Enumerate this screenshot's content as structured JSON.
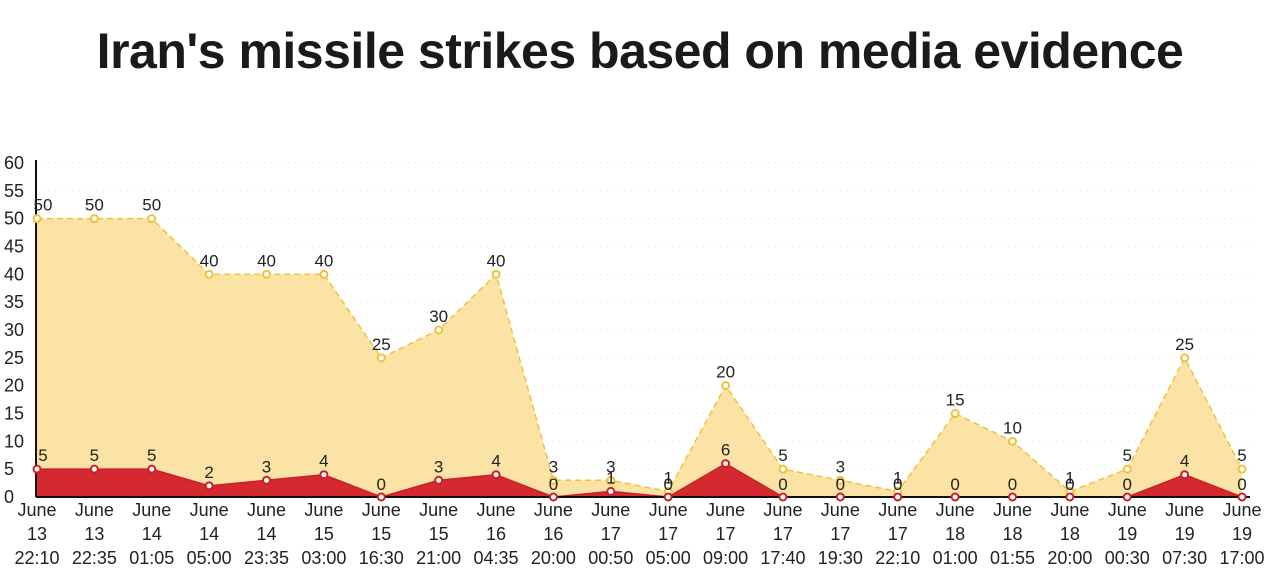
{
  "chart_data": {
    "type": "area",
    "title": "Iran's missile strikes based on media evidence",
    "xlabel": "",
    "ylabel": "",
    "ylim": [
      0,
      60
    ],
    "yticks": [
      0,
      5,
      10,
      15,
      20,
      25,
      30,
      35,
      40,
      45,
      50,
      55,
      60
    ],
    "grid": true,
    "legend": "none",
    "categories": [
      [
        "June",
        "13",
        "22:10"
      ],
      [
        "June",
        "13",
        "22:35"
      ],
      [
        "June",
        "14",
        "01:05"
      ],
      [
        "June",
        "14",
        "05:00"
      ],
      [
        "June",
        "14",
        "23:35"
      ],
      [
        "June",
        "15",
        "03:00"
      ],
      [
        "June",
        "15",
        "16:30"
      ],
      [
        "June",
        "15",
        "21:00"
      ],
      [
        "June",
        "16",
        "04:35"
      ],
      [
        "June",
        "16",
        "20:00"
      ],
      [
        "June",
        "17",
        "00:50"
      ],
      [
        "June",
        "17",
        "05:00"
      ],
      [
        "June",
        "17",
        "09:00"
      ],
      [
        "June",
        "17",
        "17:40"
      ],
      [
        "June",
        "17",
        "19:30"
      ],
      [
        "June",
        "17",
        "22:10"
      ],
      [
        "June",
        "18",
        "01:00"
      ],
      [
        "June",
        "18",
        "01:55"
      ],
      [
        "June",
        "18",
        "20:00"
      ],
      [
        "June",
        "19",
        "00:30"
      ],
      [
        "June",
        "19",
        "07:30"
      ],
      [
        "June",
        "19",
        "17:00"
      ]
    ],
    "series": [
      {
        "color": "#fbe3a6",
        "line_color": "#f0c23a",
        "values": [
          50,
          50,
          50,
          40,
          40,
          40,
          25,
          30,
          40,
          3,
          3,
          1,
          20,
          5,
          3,
          1,
          15,
          10,
          1,
          5,
          25,
          5
        ]
      },
      {
        "color": "#d42a2f",
        "line_color": "#c8202a",
        "values": [
          5,
          5,
          5,
          2,
          3,
          4,
          0,
          3,
          4,
          0,
          1,
          0,
          6,
          0,
          0,
          0,
          0,
          0,
          0,
          0,
          4,
          0
        ]
      }
    ]
  }
}
